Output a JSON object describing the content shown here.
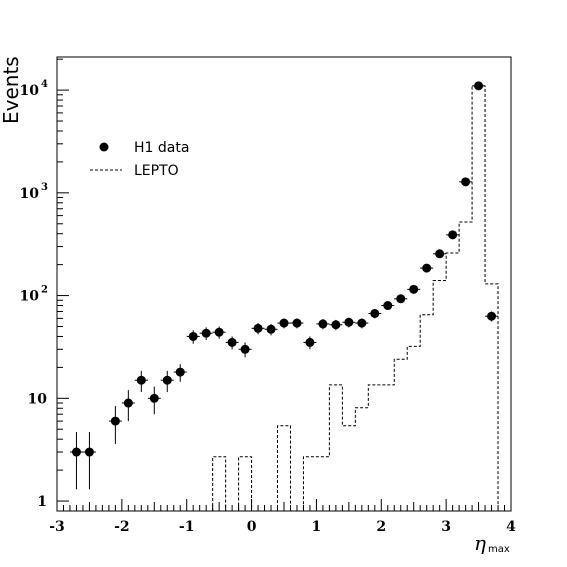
{
  "chart_data": {
    "type": "scatter",
    "title": "",
    "xlabel": "η",
    "xlabel_sub": "max",
    "ylabel": "Events",
    "xlim": [
      -3,
      4
    ],
    "ylim": [
      0.8,
      21000
    ],
    "y_scale": "log",
    "x_ticks": [
      "-3",
      "-2",
      "-1",
      "0",
      "1",
      "2",
      "3",
      "4"
    ],
    "x_tick_values": [
      -3,
      -2,
      -1,
      0,
      1,
      2,
      3,
      4
    ],
    "y_ticks": [
      {
        "value": 1,
        "base": "1",
        "exp": ""
      },
      {
        "value": 10,
        "base": "10",
        "exp": ""
      },
      {
        "value": 100,
        "base": "10",
        "exp": "2"
      },
      {
        "value": 1000,
        "base": "10",
        "exp": "3"
      },
      {
        "value": 10000,
        "base": "10",
        "exp": "4"
      }
    ],
    "legend_position": "top-left",
    "series": [
      {
        "name": "H1 data",
        "style": "points",
        "x": [
          -2.7,
          -2.5,
          -2.1,
          -1.9,
          -1.7,
          -1.5,
          -1.3,
          -1.1,
          -0.9,
          -0.7,
          -0.5,
          -0.3,
          -0.1,
          0.1,
          0.3,
          0.5,
          0.7,
          0.9,
          1.1,
          1.3,
          1.5,
          1.7,
          1.9,
          2.1,
          2.3,
          2.5,
          2.7,
          2.9,
          3.1,
          3.3,
          3.5,
          3.7
        ],
        "y": [
          3,
          3,
          6,
          9,
          15,
          10,
          15,
          18,
          40,
          43,
          44,
          35,
          30,
          48,
          47,
          54,
          54,
          35,
          53,
          52,
          55,
          54,
          67,
          80,
          93,
          115,
          185,
          255,
          390,
          1280,
          11000,
          63
        ],
        "y_low": [
          1.3,
          1.3,
          3.6,
          6.0,
          11.5,
          7.0,
          11.5,
          14.5,
          34,
          37,
          38,
          30,
          25,
          42,
          41,
          48,
          48,
          30,
          47,
          46,
          49,
          48,
          60,
          73,
          85,
          105,
          170,
          240,
          370,
          1240,
          10850,
          56
        ],
        "y_high": [
          4.7,
          4.7,
          8.4,
          12.0,
          18.5,
          13.0,
          18.5,
          21.5,
          46,
          49,
          50,
          40,
          35,
          54,
          53,
          60,
          60,
          40,
          59,
          58,
          61,
          60,
          74,
          87,
          101,
          125,
          200,
          270,
          410,
          1320,
          11150,
          70
        ]
      },
      {
        "name": "LEPTO",
        "style": "dashed-step",
        "bin_edges": [
          -0.6,
          -0.4,
          -0.2,
          0.0,
          0.4,
          0.6,
          0.8,
          1.2,
          1.4,
          1.6,
          1.8,
          2.2,
          2.4,
          2.6,
          2.8,
          3.0,
          3.2,
          3.4,
          3.6,
          3.8
        ],
        "values": [
          2.7,
          0,
          2.7,
          0,
          5.4,
          0,
          2.7,
          13.5,
          5.4,
          8.1,
          13.5,
          24,
          32,
          65,
          140,
          260,
          520,
          11000,
          130
        ]
      }
    ]
  }
}
